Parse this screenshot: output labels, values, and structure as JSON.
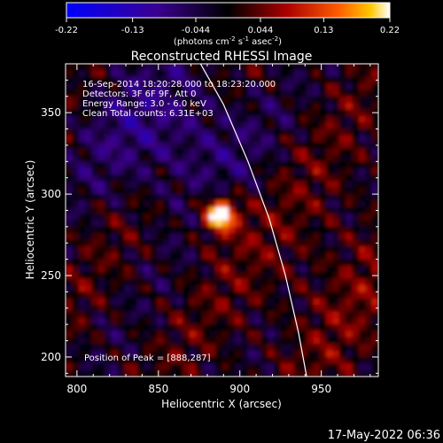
{
  "chart_data": {
    "type": "heatmap",
    "title": "Reconstructed RHESSI Image",
    "colorbar": {
      "ticks": [
        "-0.22",
        "-0.13",
        "-0.044",
        "0.044",
        "0.13",
        "0.22"
      ],
      "range": [
        -0.22,
        0.22
      ],
      "unit_parts": [
        "(photons cm",
        "-2",
        " s",
        "-1",
        " asec",
        "-2",
        ")"
      ]
    },
    "xlabel": "Heliocentric X (arcsec)",
    "ylabel": "Heliocentric Y (arcsec)",
    "xlim": [
      793,
      985
    ],
    "ylim": [
      188,
      380
    ],
    "x_ticks": [
      800,
      850,
      900,
      950
    ],
    "y_ticks": [
      200,
      250,
      300,
      350
    ],
    "x_tick_labels": [
      "800",
      "850",
      "900",
      "950"
    ],
    "y_tick_labels": [
      "200",
      "250",
      "300",
      "350"
    ],
    "info_lines": [
      "16-Sep-2014 18:20:28.000 to 18:23:20.000",
      "Detectors: 3F 6F 9F, Att 0",
      "Energy Range: 3.0 - 6.0 keV",
      "Clean     Total counts: 6.31E+03"
    ],
    "peak_text": "Position of Peak = [888,287]",
    "peak": {
      "x": 888,
      "y": 287
    },
    "limb_curve": [
      [
        873,
        385
      ],
      [
        890,
        355
      ],
      [
        905,
        320
      ],
      [
        918,
        285
      ],
      [
        928,
        250
      ],
      [
        936,
        215
      ],
      [
        941,
        188
      ]
    ],
    "timestamp": "17-May-2022 06:36"
  }
}
